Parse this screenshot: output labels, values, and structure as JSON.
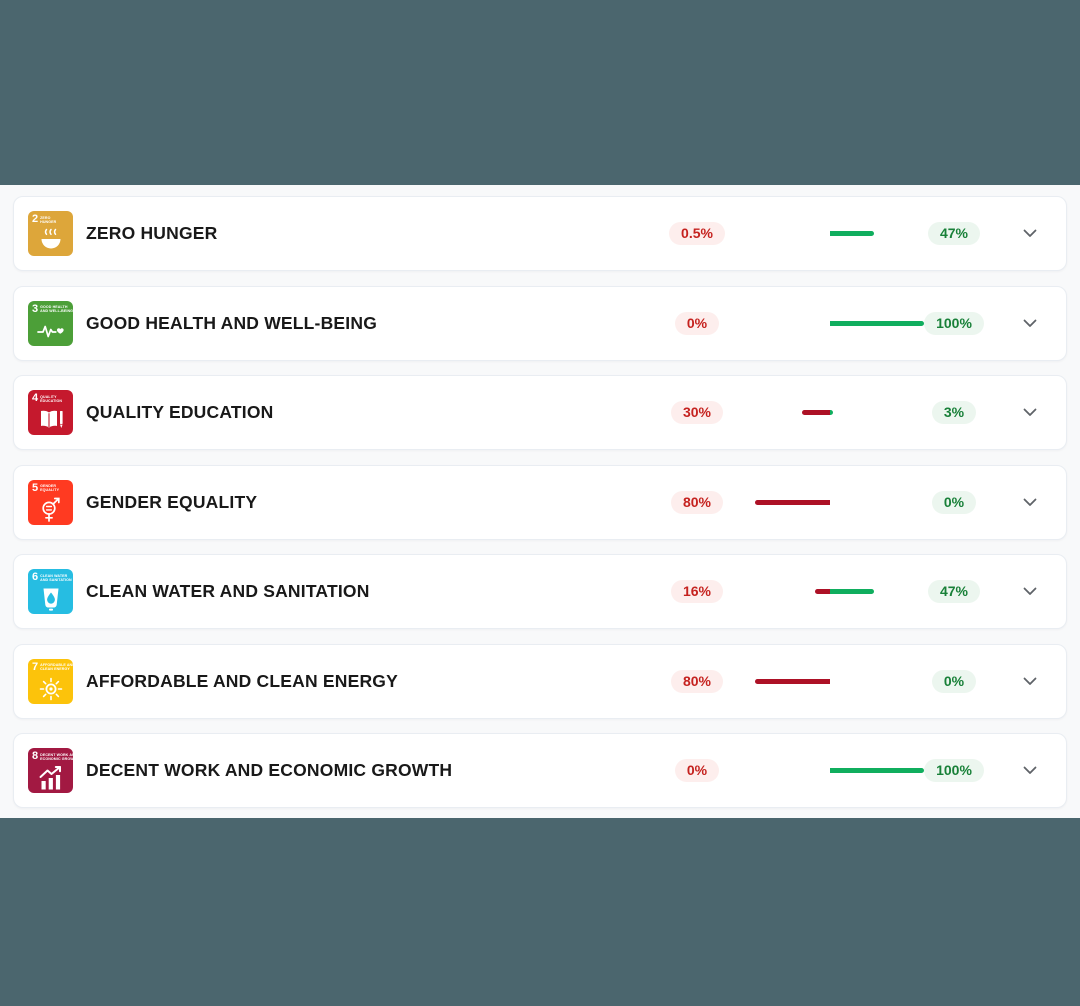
{
  "theme": {
    "band_color": "#4b666e",
    "page_bg": "#f8f9fa",
    "card_bg": "#ffffff",
    "card_border": "#e9edf2",
    "negative_badge_bg": "#fdeeed",
    "negative_badge_text": "#c5221f",
    "positive_badge_bg": "#ecf6ef",
    "positive_badge_text": "#188038",
    "bar_negative": "#ad1126",
    "bar_positive": "#10ae5e",
    "chevron_color": "#5f6368"
  },
  "goals": [
    {
      "number": "2",
      "title": "ZERO HUNGER",
      "icon_label_lines": [
        "ZERO",
        "HUNGER"
      ],
      "icon_color": "#DDA63A",
      "pictogram": "bowl",
      "negative": {
        "label": "0.5%",
        "value": 0.5
      },
      "positive": {
        "label": "47%",
        "value": 47
      }
    },
    {
      "number": "3",
      "title": "GOOD HEALTH AND WELL-BEING",
      "icon_label_lines": [
        "GOOD HEALTH",
        "AND WELL-BEING"
      ],
      "icon_color": "#4C9F38",
      "pictogram": "heartbeat",
      "negative": {
        "label": "0%",
        "value": 0
      },
      "positive": {
        "label": "100%",
        "value": 100
      }
    },
    {
      "number": "4",
      "title": "QUALITY EDUCATION",
      "icon_label_lines": [
        "QUALITY",
        "EDUCATION"
      ],
      "icon_color": "#C5192D",
      "pictogram": "book",
      "negative": {
        "label": "30%",
        "value": 30
      },
      "positive": {
        "label": "3%",
        "value": 3
      }
    },
    {
      "number": "5",
      "title": "GENDER EQUALITY",
      "icon_label_lines": [
        "GENDER",
        "EQUALITY"
      ],
      "icon_color": "#FF3A21",
      "pictogram": "gender",
      "negative": {
        "label": "80%",
        "value": 80
      },
      "positive": {
        "label": "0%",
        "value": 0
      }
    },
    {
      "number": "6",
      "title": "CLEAN WATER AND SANITATION",
      "icon_label_lines": [
        "CLEAN WATER",
        "AND SANITATION"
      ],
      "icon_color": "#26BDE2",
      "pictogram": "water",
      "negative": {
        "label": "16%",
        "value": 16
      },
      "positive": {
        "label": "47%",
        "value": 47
      }
    },
    {
      "number": "7",
      "title": "AFFORDABLE AND CLEAN ENERGY",
      "icon_label_lines": [
        "AFFORDABLE AND",
        "CLEAN ENERGY"
      ],
      "icon_color": "#FCC30B",
      "pictogram": "sun",
      "negative": {
        "label": "80%",
        "value": 80
      },
      "positive": {
        "label": "0%",
        "value": 0
      }
    },
    {
      "number": "8",
      "title": "DECENT WORK AND ECONOMIC GROWTH",
      "icon_label_lines": [
        "DECENT WORK AND",
        "ECONOMIC GROWTH"
      ],
      "icon_color": "#A21942",
      "pictogram": "chart",
      "negative": {
        "label": "0%",
        "value": 0
      },
      "positive": {
        "label": "100%",
        "value": 100
      }
    }
  ]
}
